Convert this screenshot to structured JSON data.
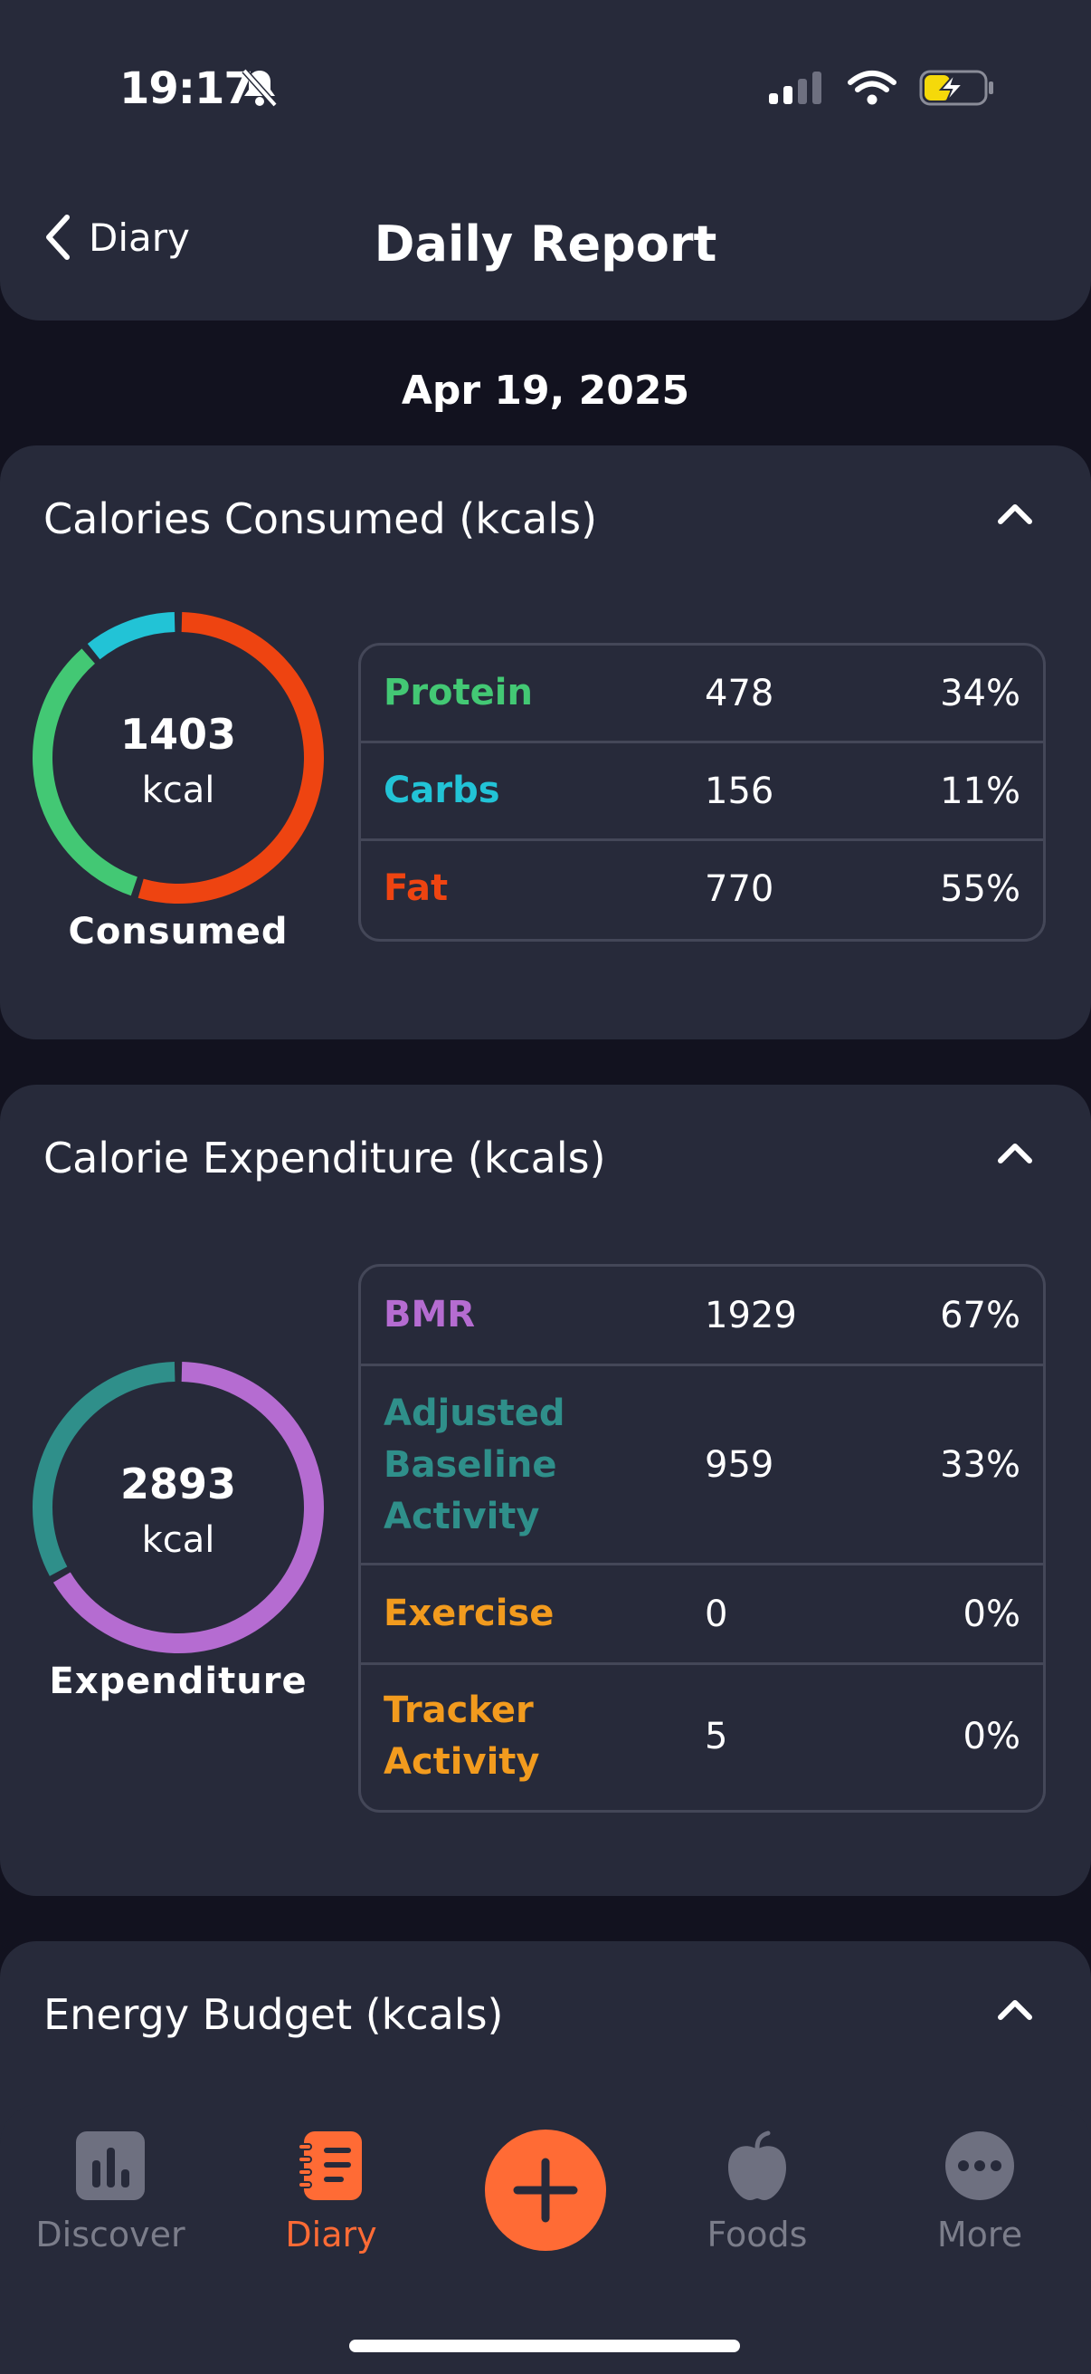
{
  "status_bar": {
    "time": "19:17"
  },
  "header": {
    "back_label": "Diary",
    "title": "Daily Report"
  },
  "date": "Apr 19, 2025",
  "consumed": {
    "title": "Calories Consumed (kcals)",
    "ring": {
      "value": "1403",
      "unit": "kcal",
      "label": "Consumed"
    },
    "rows": [
      {
        "name": "Protein",
        "value": "478",
        "pct": "34%",
        "color": "#43c874"
      },
      {
        "name": "Carbs",
        "value": "156",
        "pct": "11%",
        "color": "#22c3d6"
      },
      {
        "name": "Fat",
        "value": "770",
        "pct": "55%",
        "color": "#ee4411"
      }
    ]
  },
  "expenditure": {
    "title": "Calorie Expenditure (kcals)",
    "ring": {
      "value": "2893",
      "unit": "kcal",
      "label": "Expenditure"
    },
    "rows": [
      {
        "name": "BMR",
        "value": "1929",
        "pct": "67%",
        "color": "#b56cd1"
      },
      {
        "name_lines": [
          "Adjusted",
          "Baseline",
          "Activity"
        ],
        "value": "959",
        "pct": "33%",
        "color": "#2f8f8a"
      },
      {
        "name": "Exercise",
        "value": "0",
        "pct": "0%",
        "color": "#f29b1e"
      },
      {
        "name_lines": [
          "Tracker",
          "Activity"
        ],
        "value": "5",
        "pct": "0%",
        "color": "#f29b1e"
      }
    ]
  },
  "energy_budget": {
    "title": "Energy Budget (kcals)"
  },
  "nav": {
    "items": [
      {
        "label": "Discover",
        "icon": "bar-chart-icon"
      },
      {
        "label": "Diary",
        "icon": "diary-icon"
      },
      {
        "label": "add",
        "icon": "plus-icon"
      },
      {
        "label": "Foods",
        "icon": "apple-icon"
      },
      {
        "label": "More",
        "icon": "more-dots-icon"
      }
    ]
  },
  "colors": {
    "accent": "#ff6b35",
    "card": "#272a3a",
    "background": "#12121f"
  }
}
